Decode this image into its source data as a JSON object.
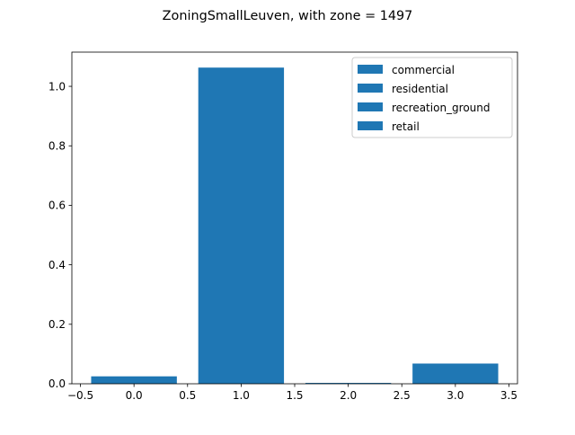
{
  "chart_data": {
    "type": "bar",
    "title": "ZoningSmallLeuven, with zone = 1497",
    "xlabel": "",
    "ylabel": "",
    "xlim": [
      -0.58,
      3.58
    ],
    "ylim": [
      0,
      1.115
    ],
    "x_ticks": [
      -0.5,
      0.0,
      0.5,
      1.0,
      1.5,
      2.0,
      2.5,
      3.0,
      3.5
    ],
    "x_tick_labels": [
      "−0.5",
      "0.0",
      "0.5",
      "1.0",
      "1.5",
      "2.0",
      "2.5",
      "3.0",
      "3.5"
    ],
    "y_ticks": [
      0.0,
      0.2,
      0.4,
      0.6,
      0.8,
      1.0
    ],
    "y_tick_labels": [
      "0.0",
      "0.2",
      "0.4",
      "0.6",
      "0.8",
      "1.0"
    ],
    "bar_width": 0.8,
    "series": [
      {
        "name": "commercial",
        "x": 0,
        "value": 0.025
      },
      {
        "name": "residential",
        "x": 1,
        "value": 1.063
      },
      {
        "name": "recreation_ground",
        "x": 2,
        "value": 0.003
      },
      {
        "name": "retail",
        "x": 3,
        "value": 0.068
      }
    ],
    "bar_color": "#1f77b4",
    "legend_position": "upper right",
    "grid": false
  }
}
